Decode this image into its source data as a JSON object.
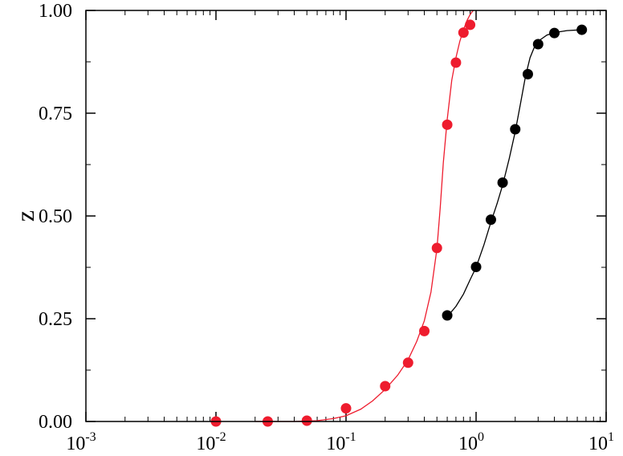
{
  "chart_data": {
    "type": "scatter",
    "title": "",
    "xlabel": "",
    "ylabel": "z",
    "xscale": "log",
    "xlim": [
      0.001,
      10
    ],
    "ylim": [
      0,
      1
    ],
    "grid": false,
    "x_ticks": [
      {
        "value": 0.001,
        "base": "10",
        "exp": "-3"
      },
      {
        "value": 0.01,
        "base": "10",
        "exp": "-2"
      },
      {
        "value": 0.1,
        "base": "10",
        "exp": "-1"
      },
      {
        "value": 1,
        "base": "10",
        "exp": "0"
      },
      {
        "value": 10,
        "base": "10",
        "exp": "1"
      }
    ],
    "y_ticks": [
      {
        "value": 0.0,
        "label": "0.00"
      },
      {
        "value": 0.25,
        "label": "0.25"
      },
      {
        "value": 0.5,
        "label": "0.50"
      },
      {
        "value": 0.75,
        "label": "0.75"
      },
      {
        "value": 1.0,
        "label": "1.00"
      }
    ],
    "series": [
      {
        "color": "#ee1c2e",
        "points": [
          {
            "x": 0.01,
            "y": 0.0
          },
          {
            "x": 0.025,
            "y": 0.0
          },
          {
            "x": 0.05,
            "y": 0.002
          },
          {
            "x": 0.1,
            "y": 0.032
          },
          {
            "x": 0.2,
            "y": 0.086
          },
          {
            "x": 0.3,
            "y": 0.143
          },
          {
            "x": 0.4,
            "y": 0.22
          },
          {
            "x": 0.5,
            "y": 0.422
          },
          {
            "x": 0.6,
            "y": 0.722
          },
          {
            "x": 0.7,
            "y": 0.873
          },
          {
            "x": 0.8,
            "y": 0.946
          },
          {
            "x": 0.9,
            "y": 0.965
          }
        ],
        "fit_curve": [
          {
            "x": 0.02,
            "y": 0.0
          },
          {
            "x": 0.04,
            "y": 0.0
          },
          {
            "x": 0.06,
            "y": 0.002
          },
          {
            "x": 0.08,
            "y": 0.007
          },
          {
            "x": 0.1,
            "y": 0.014
          },
          {
            "x": 0.13,
            "y": 0.03
          },
          {
            "x": 0.16,
            "y": 0.05
          },
          {
            "x": 0.2,
            "y": 0.078
          },
          {
            "x": 0.25,
            "y": 0.113
          },
          {
            "x": 0.3,
            "y": 0.15
          },
          {
            "x": 0.35,
            "y": 0.195
          },
          {
            "x": 0.4,
            "y": 0.245
          },
          {
            "x": 0.45,
            "y": 0.315
          },
          {
            "x": 0.5,
            "y": 0.42
          },
          {
            "x": 0.53,
            "y": 0.52
          },
          {
            "x": 0.56,
            "y": 0.63
          },
          {
            "x": 0.6,
            "y": 0.735
          },
          {
            "x": 0.65,
            "y": 0.83
          },
          {
            "x": 0.7,
            "y": 0.885
          },
          {
            "x": 0.75,
            "y": 0.925
          },
          {
            "x": 0.8,
            "y": 0.953
          },
          {
            "x": 0.85,
            "y": 0.975
          },
          {
            "x": 0.9,
            "y": 0.99
          },
          {
            "x": 0.95,
            "y": 1.0
          }
        ]
      },
      {
        "color": "#000000",
        "points": [
          {
            "x": 0.6,
            "y": 0.258
          },
          {
            "x": 1.0,
            "y": 0.376
          },
          {
            "x": 1.3,
            "y": 0.491
          },
          {
            "x": 1.6,
            "y": 0.581
          },
          {
            "x": 2.0,
            "y": 0.711
          },
          {
            "x": 2.5,
            "y": 0.845
          },
          {
            "x": 3.0,
            "y": 0.918
          },
          {
            "x": 4.0,
            "y": 0.945
          },
          {
            "x": 6.5,
            "y": 0.953
          }
        ],
        "fit_curve": [
          {
            "x": 0.6,
            "y": 0.255
          },
          {
            "x": 0.7,
            "y": 0.28
          },
          {
            "x": 0.8,
            "y": 0.31
          },
          {
            "x": 0.9,
            "y": 0.345
          },
          {
            "x": 1.0,
            "y": 0.375
          },
          {
            "x": 1.15,
            "y": 0.43
          },
          {
            "x": 1.3,
            "y": 0.485
          },
          {
            "x": 1.45,
            "y": 0.53
          },
          {
            "x": 1.6,
            "y": 0.575
          },
          {
            "x": 1.8,
            "y": 0.64
          },
          {
            "x": 2.0,
            "y": 0.705
          },
          {
            "x": 2.2,
            "y": 0.775
          },
          {
            "x": 2.4,
            "y": 0.84
          },
          {
            "x": 2.6,
            "y": 0.885
          },
          {
            "x": 2.8,
            "y": 0.91
          },
          {
            "x": 3.0,
            "y": 0.925
          },
          {
            "x": 3.5,
            "y": 0.94
          },
          {
            "x": 4.0,
            "y": 0.946
          },
          {
            "x": 5.0,
            "y": 0.951
          },
          {
            "x": 6.5,
            "y": 0.953
          }
        ]
      }
    ]
  }
}
